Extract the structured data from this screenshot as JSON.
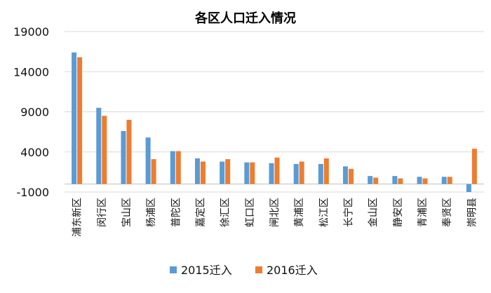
{
  "chart_data": {
    "type": "bar",
    "title": "各区人口迁入情况",
    "categories": [
      "浦东新区",
      "闵行区",
      "宝山区",
      "杨浦区",
      "普陀区",
      "嘉定区",
      "徐汇区",
      "虹口区",
      "闸北区",
      "黄浦区",
      "松江区",
      "长宁区",
      "金山区",
      "静安区",
      "青浦区",
      "奉贤区",
      "崇明县"
    ],
    "series": [
      {
        "name": "2015迁入",
        "color": "#5B9BD5",
        "values": [
          16400,
          9500,
          6600,
          5800,
          4100,
          3200,
          2800,
          2700,
          2600,
          2500,
          2500,
          2200,
          1000,
          1000,
          900,
          900,
          -1000
        ]
      },
      {
        "name": "2016迁入",
        "color": "#ED7D31",
        "values": [
          15800,
          8500,
          8000,
          3100,
          4100,
          2800,
          3100,
          2700,
          3300,
          2800,
          3200,
          1900,
          800,
          700,
          700,
          900,
          4400
        ]
      }
    ],
    "y_ticks": [
      "19000",
      "14000",
      "9000",
      "4000",
      "-1000"
    ],
    "ylim": [
      -1000,
      19000
    ],
    "grid": true,
    "legend": "bottom-center"
  }
}
